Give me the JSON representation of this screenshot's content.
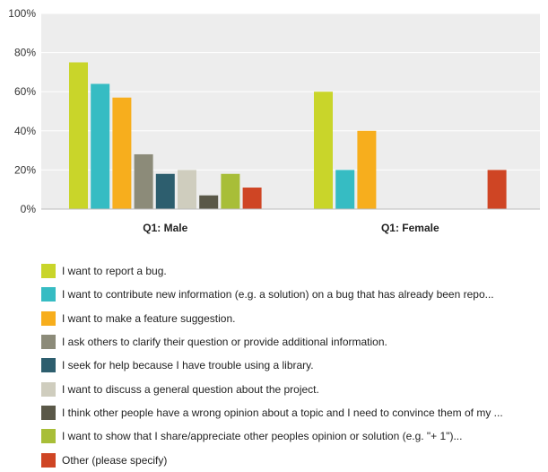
{
  "chart_data": {
    "type": "bar",
    "categories": [
      "Q1: Male",
      "Q1: Female"
    ],
    "yticks": [
      "0%",
      "20%",
      "40%",
      "60%",
      "80%",
      "100%"
    ],
    "ylim": [
      0,
      100
    ],
    "grid": true,
    "legend_position": "bottom",
    "series": [
      {
        "name": "I want to report a bug.",
        "color": "#c9d52a",
        "values": [
          75,
          60
        ]
      },
      {
        "name": "I want to contribute new information (e.g. a solution) on a bug that has already been repo...",
        "color": "#36bcc3",
        "values": [
          64,
          20
        ]
      },
      {
        "name": "I want to make a feature suggestion.",
        "color": "#f7ae1d",
        "values": [
          57,
          40
        ]
      },
      {
        "name": "I ask others to clarify their question or provide additional information.",
        "color": "#8c8b79",
        "values": [
          28,
          0
        ]
      },
      {
        "name": "I seek for help because I have trouble using a library.",
        "color": "#2d5e6e",
        "values": [
          18,
          0
        ]
      },
      {
        "name": "I want to discuss a general question about the project.",
        "color": "#cfcdbe",
        "values": [
          20,
          0
        ]
      },
      {
        "name": "I think other people have a wrong opinion about a topic and I need to convince them of my ...",
        "color": "#5a5848",
        "values": [
          7,
          0
        ]
      },
      {
        "name": "I want to show that I share/appreciate other peoples opinion or solution (e.g. \"+ 1\")...",
        "color": "#a8be38",
        "values": [
          18,
          0
        ]
      },
      {
        "name": "Other (please specify)",
        "color": "#cf4524",
        "values": [
          11,
          20
        ]
      }
    ]
  }
}
